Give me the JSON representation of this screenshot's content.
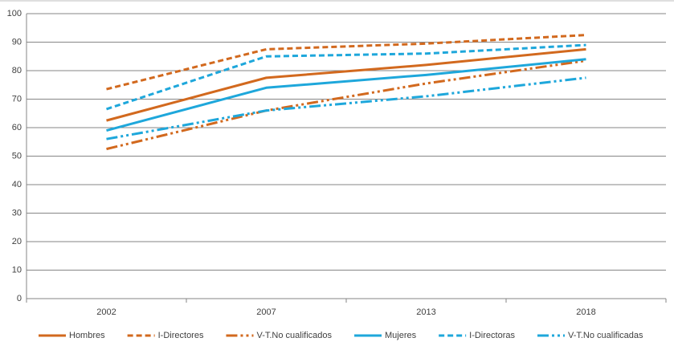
{
  "chart_data": {
    "type": "line",
    "categories": [
      "2002",
      "2007",
      "2013",
      "2018"
    ],
    "ylim": [
      0,
      100
    ],
    "yticks": [
      0,
      10,
      20,
      30,
      40,
      50,
      60,
      70,
      80,
      90,
      100
    ],
    "grid": true,
    "legend": "bottom",
    "series": [
      {
        "name": "Hombres",
        "color": "#d2691e",
        "dash": "solid",
        "values": [
          62.5,
          77.5,
          82,
          87.5
        ]
      },
      {
        "name": "I-Directores",
        "color": "#d2691e",
        "dash": "dash",
        "values": [
          73.5,
          87.5,
          89.5,
          92.5
        ]
      },
      {
        "name": "V-T.No cualificados",
        "color": "#d2691e",
        "dash": "dashdot",
        "values": [
          52.5,
          66,
          75.5,
          83.5
        ]
      },
      {
        "name": "Mujeres",
        "color": "#1ea7db",
        "dash": "solid",
        "values": [
          59,
          74,
          78.5,
          84
        ]
      },
      {
        "name": "I-Directoras",
        "color": "#1ea7db",
        "dash": "dash",
        "values": [
          66.5,
          85,
          86,
          89
        ]
      },
      {
        "name": "V-T.No cualificadas",
        "color": "#1ea7db",
        "dash": "dashdot",
        "values": [
          56,
          66,
          71,
          77.5
        ]
      }
    ]
  }
}
